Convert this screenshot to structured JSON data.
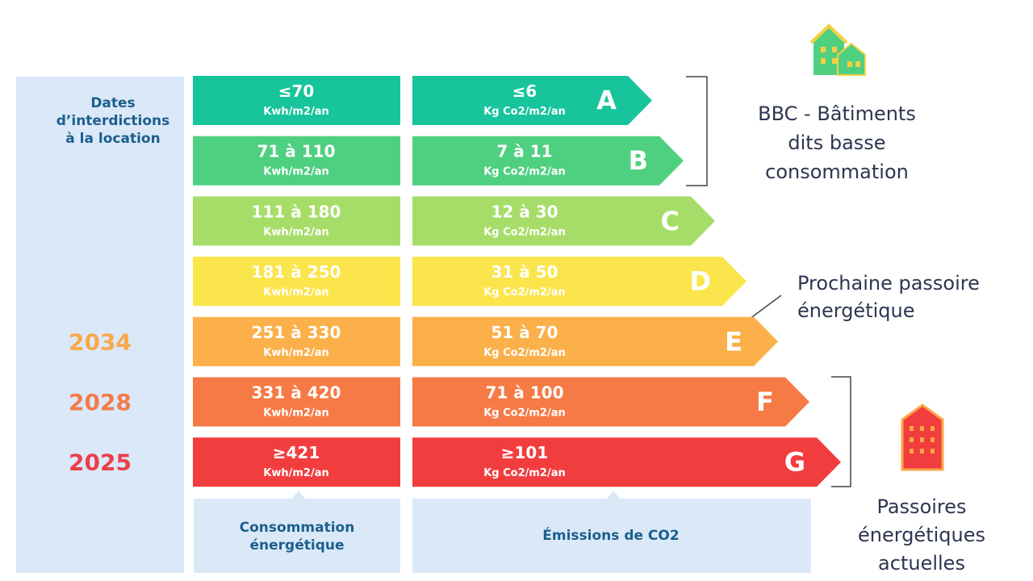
{
  "dates_label": [
    "Dates",
    "d’interdictions",
    "à la location"
  ],
  "rows": [
    {
      "letter": "A",
      "energy": "≤70",
      "energy_unit": "Kwh/m2/an",
      "co2": "≤6",
      "co2_unit": "Kg Co2/m2/an",
      "color": "#17c49b"
    },
    {
      "letter": "B",
      "energy": "71 à 110",
      "energy_unit": "Kwh/m2/an",
      "co2": "7 à 11",
      "co2_unit": "Kg Co2/m2/an",
      "color": "#4fd081"
    },
    {
      "letter": "C",
      "energy": "111 à 180",
      "energy_unit": "Kwh/m2/an",
      "co2": "12 à 30",
      "co2_unit": "Kg Co2/m2/an",
      "color": "#a6dd69"
    },
    {
      "letter": "D",
      "energy": "181 à 250",
      "energy_unit": "Kwh/m2/an",
      "co2": "31 à 50",
      "co2_unit": "Kg Co2/m2/an",
      "color": "#fbe54c"
    },
    {
      "letter": "E",
      "energy": "251 à 330",
      "energy_unit": "Kwh/m2/an",
      "co2": "51 à 70",
      "co2_unit": "Kg Co2/m2/an",
      "color": "#fbb04a",
      "year": "2034",
      "year_color": "#f9a84a"
    },
    {
      "letter": "F",
      "energy": "331 à 420",
      "energy_unit": "Kwh/m2/an",
      "co2": "71  à 100",
      "co2_unit": "Kg Co2/m2/an",
      "color": "#f57a45",
      "year": "2028",
      "year_color": "#f37b4a"
    },
    {
      "letter": "G",
      "energy": "≥421",
      "energy_unit": "Kwh/m2/an",
      "co2": "≥101",
      "co2_unit": "Kg Co2/m2/an",
      "color": "#f23d3f",
      "year": "2025",
      "year_color": "#ec3f47"
    }
  ],
  "energy_label": [
    "Consommation",
    "énergétique"
  ],
  "co2_label": "Émissions de CO2",
  "bbc_label": [
    "BBC - Bâtiments",
    "dits basse",
    "consommation"
  ],
  "next_label": [
    "Prochaine passoire",
    "énergétique"
  ],
  "current_label": [
    "Passoires",
    "énergétiques",
    "actuelles"
  ]
}
